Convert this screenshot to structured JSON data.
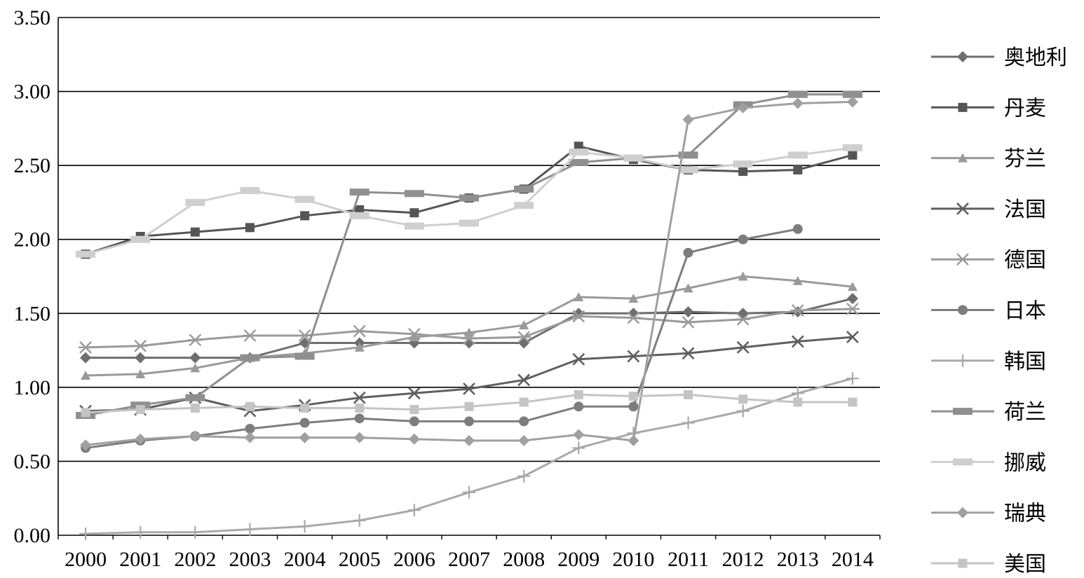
{
  "chart_data": {
    "type": "line",
    "title": "",
    "xlabel": "",
    "ylabel": "",
    "x": [
      "2000",
      "2001",
      "2002",
      "2003",
      "2004",
      "2005",
      "2006",
      "2007",
      "2008",
      "2009",
      "2010",
      "2011",
      "2012",
      "2013",
      "2014"
    ],
    "ylim": [
      0,
      3.5
    ],
    "yticks": [
      "0.00",
      "0.50",
      "1.00",
      "1.50",
      "2.00",
      "2.50",
      "3.00",
      "3.50"
    ],
    "grid": "horizontal",
    "legend_position": "right",
    "series": [
      {
        "name": "奥地利",
        "marker": "diamond",
        "color": "#6e6e6e",
        "values": [
          1.2,
          1.2,
          1.2,
          1.2,
          1.3,
          1.3,
          1.3,
          1.3,
          1.3,
          1.5,
          1.5,
          1.51,
          1.5,
          1.51,
          1.6
        ]
      },
      {
        "name": "丹麦",
        "marker": "square",
        "color": "#555555",
        "values": [
          1.9,
          2.02,
          2.05,
          2.08,
          2.16,
          2.2,
          2.18,
          2.28,
          2.34,
          2.63,
          2.54,
          2.47,
          2.46,
          2.47,
          2.57
        ]
      },
      {
        "name": "芬兰",
        "marker": "triangle",
        "color": "#9a9a9a",
        "values": [
          1.08,
          1.09,
          1.13,
          1.2,
          1.23,
          1.27,
          1.34,
          1.37,
          1.42,
          1.61,
          1.6,
          1.67,
          1.75,
          1.72,
          1.68
        ]
      },
      {
        "name": "法国",
        "marker": "x",
        "color": "#5f5f5f",
        "values": [
          0.84,
          0.85,
          0.93,
          0.84,
          0.88,
          0.93,
          0.96,
          0.99,
          1.05,
          1.19,
          1.21,
          1.23,
          1.27,
          1.31,
          1.34
        ]
      },
      {
        "name": "德国",
        "marker": "asterisk",
        "color": "#9a9a9a",
        "values": [
          1.27,
          1.28,
          1.32,
          1.35,
          1.35,
          1.38,
          1.36,
          1.33,
          1.34,
          1.48,
          1.47,
          1.44,
          1.46,
          1.52,
          1.53
        ]
      },
      {
        "name": "日本",
        "marker": "circle",
        "color": "#7d7d7d",
        "values": [
          0.59,
          0.64,
          0.67,
          0.72,
          0.76,
          0.79,
          0.77,
          0.77,
          0.77,
          0.87,
          0.87,
          1.91,
          2.0,
          2.07,
          null
        ]
      },
      {
        "name": "韩国",
        "marker": "plus",
        "color": "#a9a9a9",
        "values": [
          0.01,
          0.02,
          0.02,
          0.04,
          0.06,
          0.1,
          0.17,
          0.29,
          0.4,
          0.59,
          0.69,
          0.76,
          0.84,
          0.96,
          1.06
        ]
      },
      {
        "name": "荷兰",
        "marker": "dash",
        "color": "#8f8f8f",
        "values": [
          0.81,
          0.88,
          0.93,
          1.2,
          1.21,
          2.32,
          2.31,
          2.28,
          2.34,
          2.52,
          2.55,
          2.57,
          2.91,
          2.98,
          2.98
        ]
      },
      {
        "name": "挪威",
        "marker": "dash",
        "color": "#cfcfcf",
        "values": [
          1.9,
          2.0,
          2.25,
          2.33,
          2.27,
          2.16,
          2.09,
          2.11,
          2.23,
          2.59,
          2.55,
          2.47,
          2.51,
          2.57,
          2.62
        ]
      },
      {
        "name": "瑞典",
        "marker": "diamond",
        "color": "#a0a0a0",
        "values": [
          0.61,
          0.65,
          0.67,
          0.66,
          0.66,
          0.66,
          0.65,
          0.64,
          0.64,
          0.68,
          0.64,
          2.81,
          2.89,
          2.92,
          2.93
        ]
      },
      {
        "name": "美国",
        "marker": "square",
        "color": "#c4c4c4",
        "values": [
          0.83,
          0.85,
          0.86,
          0.87,
          0.86,
          0.86,
          0.85,
          0.87,
          0.9,
          0.95,
          0.94,
          0.95,
          0.92,
          0.9,
          0.9
        ]
      }
    ]
  }
}
